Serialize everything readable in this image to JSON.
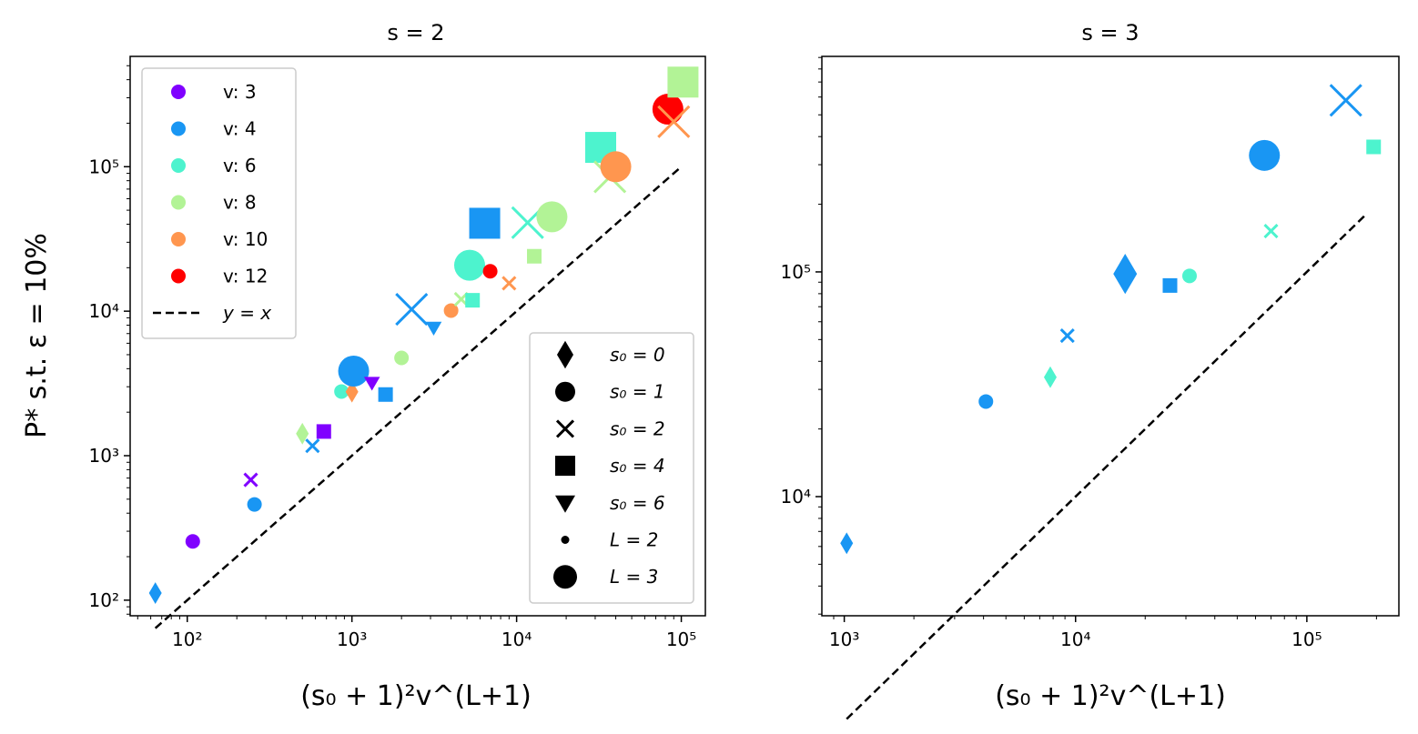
{
  "colors": {
    "3": "#8000ff",
    "4": "#1996f3",
    "6": "#4df3ce",
    "8": "#b2f396",
    "10": "#ff964f",
    "12": "#ff0000"
  },
  "chart_data": [
    {
      "type": "scatter",
      "title": "s = 2",
      "xlabel": "(s₀ + 1)²v^(L+1)",
      "ylabel": "P* s.t. ε = 10%",
      "xscale": "log",
      "yscale": "log",
      "xlim": [
        45,
        140000
      ],
      "ylim": [
        78,
        580000
      ],
      "xticks": [
        100,
        1000,
        10000,
        100000
      ],
      "yticks": [
        100,
        1000,
        10000,
        100000
      ],
      "reference_line": {
        "label": "y = x",
        "from": 64,
        "to": 100000
      },
      "legend_v": {
        "position": "top-left",
        "entries": [
          {
            "label": "v: 3",
            "v": "3"
          },
          {
            "label": "v: 4",
            "v": "4"
          },
          {
            "label": "v: 6",
            "v": "6"
          },
          {
            "label": "v: 8",
            "v": "8"
          },
          {
            "label": "v: 10",
            "v": "10"
          },
          {
            "label": "v: 12",
            "v": "12"
          },
          {
            "label": "y = x",
            "v": "line"
          }
        ]
      },
      "legend_marker": {
        "position": "lower-right",
        "entries": [
          {
            "label": "s₀ = 0",
            "marker": "diamond"
          },
          {
            "label": "s₀ = 1",
            "marker": "circle"
          },
          {
            "label": "s₀ = 2",
            "marker": "x"
          },
          {
            "label": "s₀ = 4",
            "marker": "square"
          },
          {
            "label": "s₀ = 6",
            "marker": "triangle"
          },
          {
            "label": "L = 2",
            "marker": "small"
          },
          {
            "label": "L = 3",
            "marker": "large"
          }
        ]
      },
      "points": [
        {
          "x": 64,
          "y": 112,
          "v": "4",
          "s0": 0,
          "L": 2
        },
        {
          "x": 108,
          "y": 255,
          "v": "3",
          "s0": 1,
          "L": 2
        },
        {
          "x": 243,
          "y": 680,
          "v": "3",
          "s0": 2,
          "L": 2
        },
        {
          "x": 256,
          "y": 460,
          "v": "4",
          "s0": 1,
          "L": 2
        },
        {
          "x": 500,
          "y": 1420,
          "v": "8",
          "s0": 0,
          "L": 2
        },
        {
          "x": 576,
          "y": 1170,
          "v": "4",
          "s0": 2,
          "L": 2
        },
        {
          "x": 675,
          "y": 1470,
          "v": "3",
          "s0": 4,
          "L": 2
        },
        {
          "x": 864,
          "y": 2780,
          "v": "6",
          "s0": 1,
          "L": 2
        },
        {
          "x": 1000,
          "y": 2770,
          "v": "10",
          "s0": 0,
          "L": 2
        },
        {
          "x": 1024,
          "y": 3850,
          "v": "4",
          "s0": 1,
          "L": 3
        },
        {
          "x": 1323,
          "y": 3200,
          "v": "3",
          "s0": 6,
          "L": 2
        },
        {
          "x": 1600,
          "y": 2650,
          "v": "4",
          "s0": 4,
          "L": 2
        },
        {
          "x": 2000,
          "y": 4750,
          "v": "8",
          "s0": 1,
          "L": 2
        },
        {
          "x": 2304,
          "y": 10300,
          "v": "4",
          "s0": 2,
          "L": 3
        },
        {
          "x": 3136,
          "y": 7700,
          "v": "4",
          "s0": 6,
          "L": 2
        },
        {
          "x": 4000,
          "y": 10100,
          "v": "10",
          "s0": 1,
          "L": 2
        },
        {
          "x": 4608,
          "y": 12100,
          "v": "8",
          "s0": 2,
          "L": 2
        },
        {
          "x": 5184,
          "y": 20800,
          "v": "6",
          "s0": 1,
          "L": 3
        },
        {
          "x": 5400,
          "y": 11900,
          "v": "6",
          "s0": 4,
          "L": 2
        },
        {
          "x": 6912,
          "y": 18900,
          "v": "12",
          "s0": 1,
          "L": 2
        },
        {
          "x": 9000,
          "y": 15600,
          "v": "10",
          "s0": 2,
          "L": 2
        },
        {
          "x": 6400,
          "y": 40600,
          "v": "4",
          "s0": 4,
          "L": 3
        },
        {
          "x": 11664,
          "y": 41000,
          "v": "6",
          "s0": 2,
          "L": 3
        },
        {
          "x": 12800,
          "y": 24000,
          "v": "8",
          "s0": 4,
          "L": 2
        },
        {
          "x": 16384,
          "y": 45000,
          "v": "8",
          "s0": 1,
          "L": 3
        },
        {
          "x": 32400,
          "y": 136000,
          "v": "6",
          "s0": 4,
          "L": 3
        },
        {
          "x": 36864,
          "y": 85000,
          "v": "8",
          "s0": 2,
          "L": 3
        },
        {
          "x": 40000,
          "y": 100000,
          "v": "10",
          "s0": 1,
          "L": 3
        },
        {
          "x": 82944,
          "y": 250000,
          "v": "12",
          "s0": 1,
          "L": 3
        },
        {
          "x": 90000,
          "y": 205000,
          "v": "10",
          "s0": 2,
          "L": 3
        },
        {
          "x": 102400,
          "y": 385000,
          "v": "8",
          "s0": 4,
          "L": 3
        }
      ]
    },
    {
      "type": "scatter",
      "title": "s = 3",
      "xlabel": "(s₀ + 1)²v^(L+1)",
      "ylabel": "",
      "xscale": "log",
      "yscale": "log",
      "xlim": [
        800,
        250000
      ],
      "ylim": [
        2950,
        910000
      ],
      "xticks": [
        1000,
        10000,
        100000
      ],
      "yticks": [
        10000,
        100000
      ],
      "reference_line": {
        "label": "y = x",
        "from": 1024,
        "to": 180000
      },
      "points": [
        {
          "x": 1024,
          "y": 6200,
          "v": "4",
          "s0": 0,
          "L": 3
        },
        {
          "x": 4096,
          "y": 26500,
          "v": "4",
          "s0": 1,
          "L": 3
        },
        {
          "x": 7776,
          "y": 34000,
          "v": "6",
          "s0": 0,
          "L": 3
        },
        {
          "x": 9216,
          "y": 52000,
          "v": "4",
          "s0": 2,
          "L": 3
        },
        {
          "x": 16384,
          "y": 98000,
          "v": "4",
          "s0": 0,
          "L": 3,
          "big": true
        },
        {
          "x": 25600,
          "y": 87000,
          "v": "4",
          "s0": 4,
          "L": 3
        },
        {
          "x": 31104,
          "y": 96000,
          "v": "6",
          "s0": 1,
          "L": 3
        },
        {
          "x": 65536,
          "y": 330000,
          "v": "4",
          "s0": 1,
          "L": 3,
          "big": true
        },
        {
          "x": 69984,
          "y": 152000,
          "v": "6",
          "s0": 2,
          "L": 3
        },
        {
          "x": 147456,
          "y": 580000,
          "v": "4",
          "s0": 2,
          "L": 3,
          "big": true
        },
        {
          "x": 194400,
          "y": 360000,
          "v": "6",
          "s0": 4,
          "L": 3
        }
      ]
    }
  ]
}
